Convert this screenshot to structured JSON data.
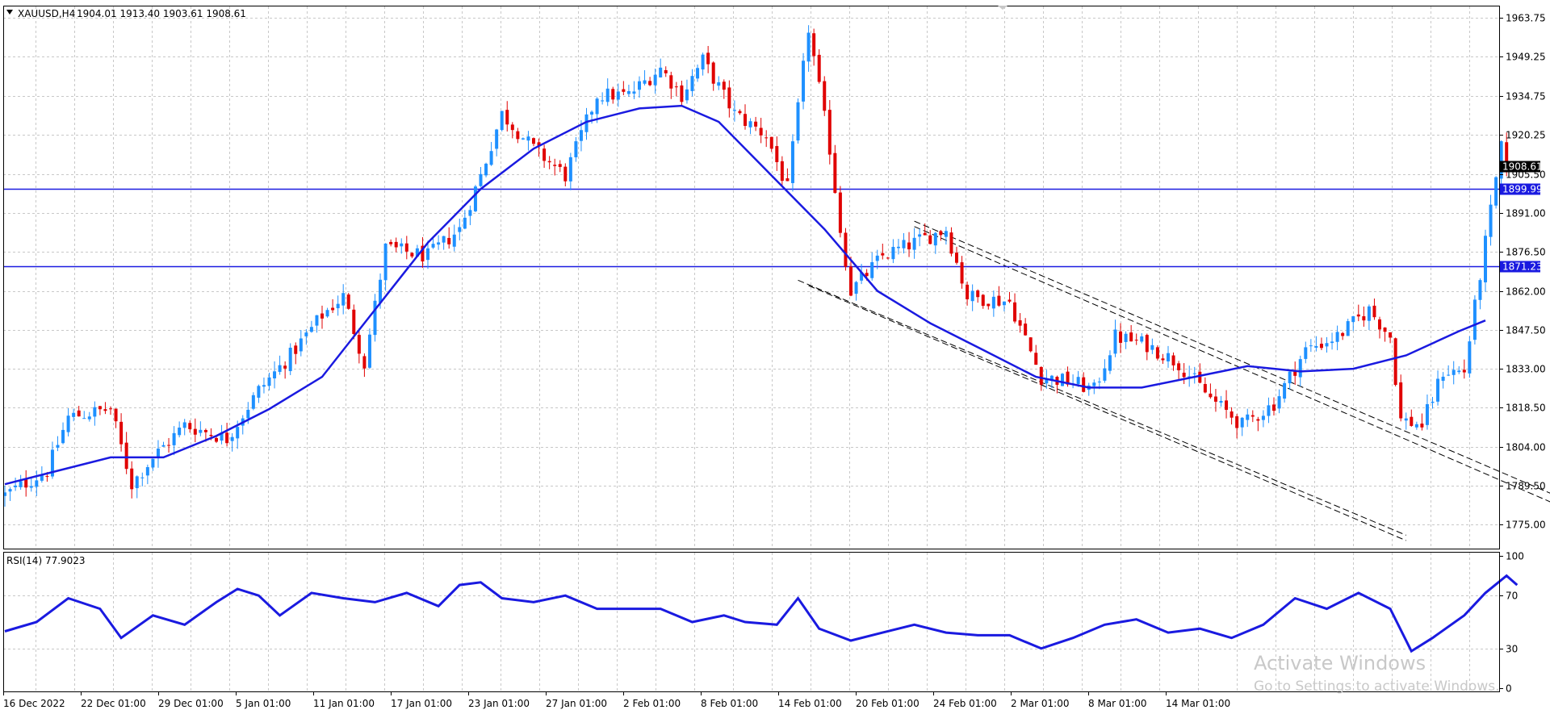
{
  "header": {
    "symbol": "XAUUSD,H4",
    "ohlc": "1904.01 1913.40 1903.61 1908.61"
  },
  "watermark": {
    "line1": "Activate Windows",
    "line2": "Go to Settings to activate Windows."
  },
  "colors": {
    "bull": "#1e90ff",
    "bear": "#e00000",
    "ma": "#1a1ae0",
    "level": "#1a1ae0",
    "rsi": "#1a1ae0",
    "grid": "#c8c8c8",
    "channel": "#000000"
  },
  "chart_data": [
    {
      "type": "candlestick",
      "ylim": [
        1766,
        1968
      ],
      "y_ticks": [
        1775.0,
        1789.5,
        1804.0,
        1818.5,
        1833.0,
        1847.5,
        1862.0,
        1876.5,
        1891.0,
        1905.5,
        1920.25,
        1934.75,
        1949.25,
        1963.75
      ],
      "y_tick_labels": [
        "1775.00",
        "1789.50",
        "1804.00",
        "1818.50",
        "1833.00",
        "1847.50",
        "1862.00",
        "1876.50",
        "1891.00",
        "1905.50",
        "1920.25",
        "1934.75",
        "1949.25",
        "1963.75"
      ],
      "x_labels": [
        "16 Dec 2022",
        "22 Dec 01:00",
        "29 Dec 01:00",
        "5 Jan 01:00",
        "11 Jan 01:00",
        "17 Jan 01:00",
        "23 Jan 01:00",
        "27 Jan 01:00",
        "2 Feb 01:00",
        "8 Feb 01:00",
        "14 Feb 01:00",
        "20 Feb 01:00",
        "24 Feb 01:00",
        "2 Mar 01:00",
        "8 Mar 01:00",
        "14 Mar 01:00"
      ],
      "current_price": 1908.61,
      "current_price_label": "1908.61",
      "horizontal_levels": [
        {
          "value": 1899.99,
          "label": "1899.99"
        },
        {
          "value": 1871.23,
          "label": "1871.23"
        }
      ],
      "moving_average": {
        "bars": [
          0,
          10,
          20,
          30,
          40,
          50,
          60,
          70,
          80,
          90,
          100,
          110,
          120,
          128,
          135,
          145,
          155,
          165,
          175,
          185,
          195,
          205,
          215,
          225,
          235,
          245,
          255,
          265,
          275,
          280
        ],
        "values": [
          1790,
          1795,
          1800,
          1800,
          1808,
          1818,
          1830,
          1855,
          1880,
          1900,
          1915,
          1925,
          1930,
          1931,
          1925,
          1905,
          1885,
          1862,
          1850,
          1840,
          1830,
          1826,
          1826,
          1830,
          1834,
          1832,
          1833,
          1838,
          1847,
          1851
        ]
      },
      "channel_lines": [
        {
          "bar1": 150,
          "price1": 1866,
          "bar2": 265,
          "price2": 1771
        },
        {
          "bar1": 152,
          "price1": 1864,
          "bar2": 265,
          "price2": 1769
        },
        {
          "bar1": 172,
          "price1": 1888,
          "bar2": 312,
          "price2": 1770
        },
        {
          "bar1": 172,
          "price1": 1886,
          "bar2": 308,
          "price2": 1770
        }
      ],
      "candles": {
        "count": 282,
        "close_path": [
          [
            0,
            1786
          ],
          [
            8,
            1795
          ],
          [
            12,
            1815
          ],
          [
            20,
            1818
          ],
          [
            24,
            1790
          ],
          [
            28,
            1800
          ],
          [
            34,
            1812
          ],
          [
            42,
            1807
          ],
          [
            48,
            1825
          ],
          [
            54,
            1838
          ],
          [
            60,
            1853
          ],
          [
            64,
            1860
          ],
          [
            68,
            1835
          ],
          [
            72,
            1878
          ],
          [
            80,
            1875
          ],
          [
            86,
            1885
          ],
          [
            90,
            1905
          ],
          [
            94,
            1928
          ],
          [
            100,
            1915
          ],
          [
            106,
            1905
          ],
          [
            112,
            1935
          ],
          [
            118,
            1935
          ],
          [
            124,
            1945
          ],
          [
            128,
            1935
          ],
          [
            132,
            1948
          ],
          [
            138,
            1928
          ],
          [
            144,
            1920
          ],
          [
            148,
            1900
          ],
          [
            152,
            1960
          ],
          [
            156,
            1915
          ],
          [
            158,
            1885
          ],
          [
            160,
            1862
          ],
          [
            166,
            1875
          ],
          [
            172,
            1880
          ],
          [
            178,
            1885
          ],
          [
            182,
            1860
          ],
          [
            190,
            1858
          ],
          [
            196,
            1830
          ],
          [
            202,
            1828
          ],
          [
            206,
            1825
          ],
          [
            210,
            1845
          ],
          [
            216,
            1842
          ],
          [
            222,
            1835
          ],
          [
            228,
            1822
          ],
          [
            234,
            1812
          ],
          [
            240,
            1820
          ],
          [
            246,
            1840
          ],
          [
            252,
            1845
          ],
          [
            258,
            1855
          ],
          [
            262,
            1845
          ],
          [
            264,
            1814
          ],
          [
            268,
            1812
          ],
          [
            272,
            1832
          ],
          [
            276,
            1832
          ],
          [
            280,
            1880
          ],
          [
            283,
            1915
          ],
          [
            284,
            1909
          ]
        ]
      }
    },
    {
      "type": "line",
      "title": "RSI(14) 77.9023",
      "ylim": [
        0,
        100
      ],
      "y_ticks": [
        0,
        30,
        70,
        100
      ],
      "y_tick_labels": [
        "0",
        "30",
        "70",
        "100"
      ],
      "values_path": [
        [
          0,
          43
        ],
        [
          6,
          50
        ],
        [
          12,
          68
        ],
        [
          18,
          60
        ],
        [
          22,
          38
        ],
        [
          28,
          55
        ],
        [
          34,
          48
        ],
        [
          40,
          65
        ],
        [
          44,
          75
        ],
        [
          48,
          70
        ],
        [
          52,
          55
        ],
        [
          58,
          72
        ],
        [
          64,
          68
        ],
        [
          70,
          65
        ],
        [
          76,
          72
        ],
        [
          82,
          62
        ],
        [
          86,
          78
        ],
        [
          90,
          80
        ],
        [
          94,
          68
        ],
        [
          100,
          65
        ],
        [
          106,
          70
        ],
        [
          112,
          60
        ],
        [
          118,
          60
        ],
        [
          124,
          60
        ],
        [
          130,
          50
        ],
        [
          136,
          55
        ],
        [
          140,
          50
        ],
        [
          146,
          48
        ],
        [
          150,
          68
        ],
        [
          154,
          45
        ],
        [
          160,
          36
        ],
        [
          166,
          42
        ],
        [
          172,
          48
        ],
        [
          178,
          42
        ],
        [
          184,
          40
        ],
        [
          190,
          40
        ],
        [
          196,
          30
        ],
        [
          202,
          38
        ],
        [
          208,
          48
        ],
        [
          214,
          52
        ],
        [
          220,
          42
        ],
        [
          226,
          45
        ],
        [
          232,
          38
        ],
        [
          238,
          48
        ],
        [
          244,
          68
        ],
        [
          250,
          60
        ],
        [
          256,
          72
        ],
        [
          262,
          60
        ],
        [
          266,
          28
        ],
        [
          270,
          38
        ],
        [
          276,
          55
        ],
        [
          280,
          72
        ],
        [
          284,
          85
        ],
        [
          286,
          78
        ]
      ]
    }
  ]
}
